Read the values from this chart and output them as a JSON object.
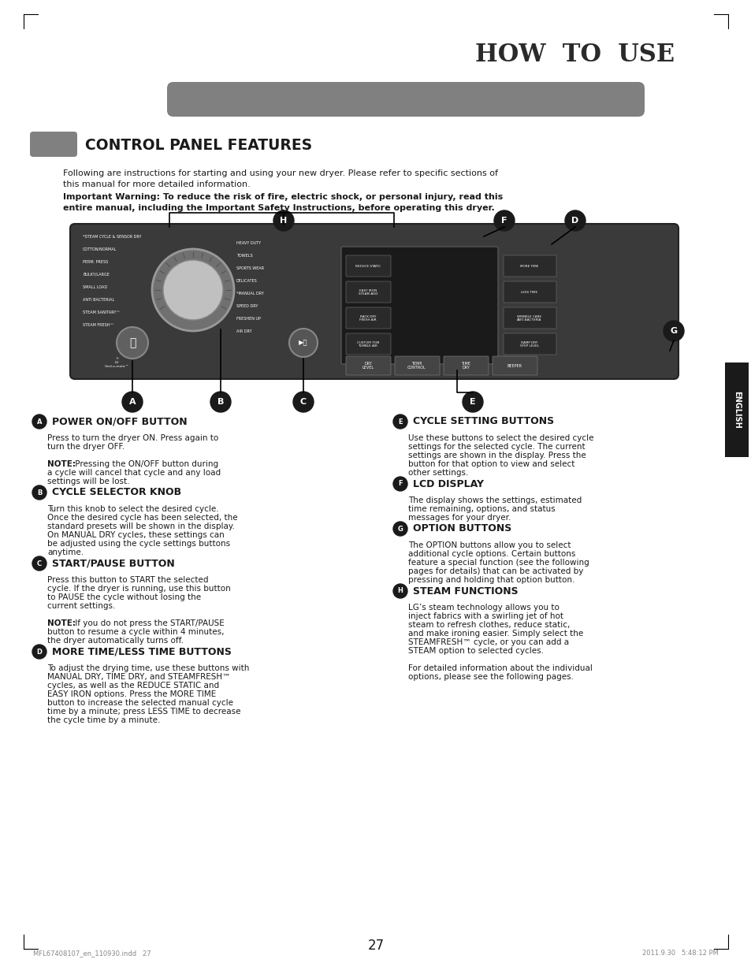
{
  "page_title": "HOW  TO  USE",
  "section_title": "CONTROL PANEL FEATURES",
  "intro_text": "Following are instructions for starting and using your new dryer. Please refer to specific sections of\nthis manual for more detailed information.",
  "warning_text": "Important Warning: To reduce the risk of fire, electric shock, or personal injury, read this\nentire manual, including the Important Safety Instructions, before operating this dryer.",
  "bg_color": "#ffffff",
  "header_bar_color": "#808080",
  "section_icon_color": "#808080",
  "title_color": "#1a1a1a",
  "text_color": "#1a1a1a",
  "label_items": [
    {
      "letter": "A",
      "heading": "POWER ON/OFF BUTTON",
      "body": "Press to turn the dryer ON. Press again to\nturn the dryer OFF.\n\nNOTE: Pressing the ON/OFF button during\na cycle will cancel that cycle and any load\nsettings will be lost."
    },
    {
      "letter": "B",
      "heading": "CYCLE SELECTOR KNOB",
      "body": "Turn this knob to select the desired cycle.\nOnce the desired cycle has been selected, the\nstandard presets will be shown in the display.\nOn MANUAL DRY cycles, these settings can\nbe adjusted using the cycle settings buttons\nanytime."
    },
    {
      "letter": "C",
      "heading": "START/PAUSE BUTTON",
      "body": "Press this button to START the selected\ncycle. If the dryer is running, use this button\nto PAUSE the cycle without losing the\ncurrent settings.\n\nNOTE: If you do not press the START/PAUSE\nbutton to resume a cycle within 4 minutes,\nthe dryer automatically turns off."
    },
    {
      "letter": "D",
      "heading": "MORE TIME/LESS TIME BUTTONS",
      "body": "To adjust the drying time, use these buttons with\nMANUAL DRY, TIME DRY, and STEAMFRESH™\ncycles, as well as the REDUCE STATIC and\nEASY IRON options. Press the MORE TIME\nbutton to increase the selected manual cycle\ntime by a minute; press LESS TIME to decrease\nthe cycle time by a minute."
    },
    {
      "letter": "E",
      "heading": "CYCLE SETTING BUTTONS",
      "body": "Use these buttons to select the desired cycle\nsettings for the selected cycle. The current\nsettings are shown in the display. Press the\nbutton for that option to view and select\nother settings."
    },
    {
      "letter": "F",
      "heading": "LCD DISPLAY",
      "body": "The display shows the settings, estimated\ntime remaining, options, and status\nmessages for your dryer."
    },
    {
      "letter": "G",
      "heading": "OPTION BUTTONS",
      "body": "The OPTION buttons allow you to select\nadditional cycle options. Certain buttons\nfeature a special function (see the following\npages for details) that can be activated by\npressing and holding that option button."
    },
    {
      "letter": "H",
      "heading": "STEAM FUNCTIONS",
      "body": "LG’s steam technology allows you to\ninject fabrics with a swirling jet of hot\nsteam to refresh clothes, reduce static,\nand make ironing easier. Simply select the\nSTEAMFRESH™ cycle, or you can add a\nSTEAM option to selected cycles.\n\nFor detailed information about the individual\noptions, please see the following pages."
    }
  ],
  "side_tab_color": "#1a1a1a",
  "side_tab_text": "ENGLISH",
  "page_number": "27",
  "footer_left": "MFL67408107_en_110930.indd   27",
  "footer_right": "2011.9.30   5:48:12 PM"
}
